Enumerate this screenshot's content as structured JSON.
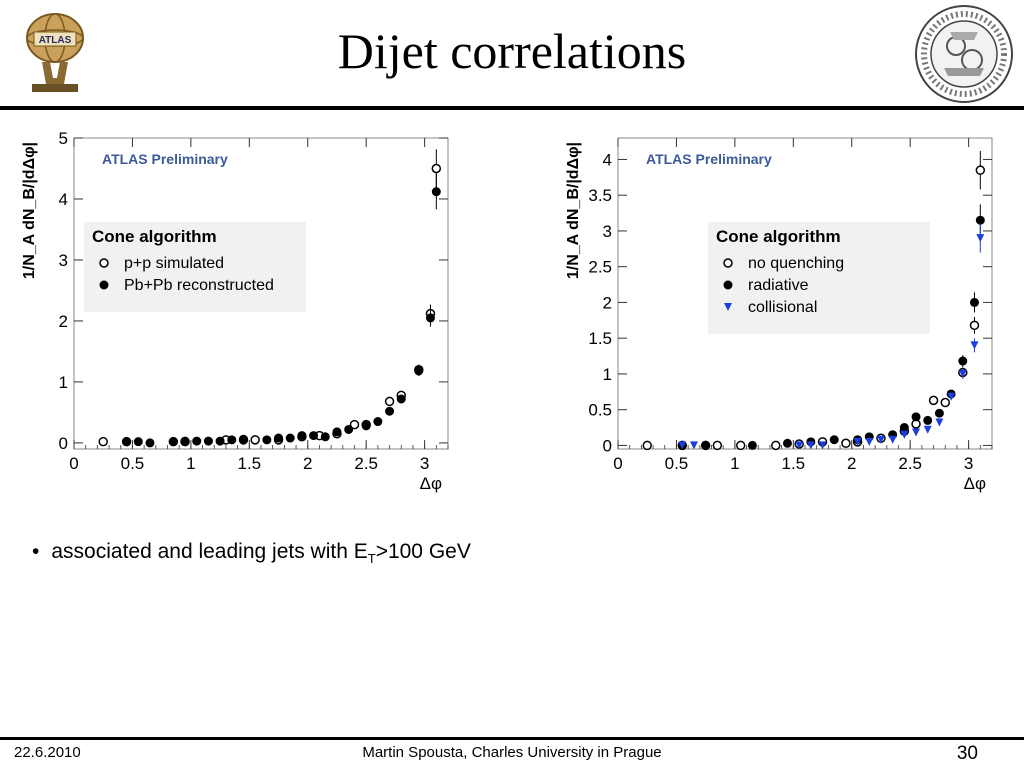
{
  "slide": {
    "title": "Dijet correlations",
    "bullet": {
      "text": "associated and leading jets with E",
      "sub": "T",
      "rest": ">100 GeV"
    },
    "footer": {
      "date": "22.6.2010",
      "author": "Martin Spousta,  Charles University in Prague",
      "page": "30"
    },
    "logo_text": "ATLAS"
  },
  "colors": {
    "text": "#000000",
    "collisional": "#1a3ee0",
    "background": "#ffffff"
  },
  "chart_data": [
    {
      "type": "scatter",
      "watermark": "ATLAS Preliminary",
      "legend_title": "Cone algorithm",
      "legend_position": "upper-left",
      "xlabel": "Δφ",
      "ylabel": "1/N_A dN_B/|dΔφ|",
      "xlim": [
        0,
        3.2
      ],
      "ylim": [
        -0.1,
        5
      ],
      "xticks": [
        "0",
        "0.5",
        "1",
        "1.5",
        "2",
        "2.5",
        "3"
      ],
      "yticks": [
        "0",
        "1",
        "2",
        "3",
        "4",
        "5"
      ],
      "series": [
        {
          "name": "p+p simulated",
          "marker": "open-circle",
          "color": "#000000",
          "x": [
            0.25,
            0.45,
            0.85,
            0.95,
            1.3,
            1.45,
            1.55,
            1.75,
            1.95,
            2.1,
            2.25,
            2.4,
            2.5,
            2.7,
            2.8,
            2.95,
            3.05,
            3.1
          ],
          "y": [
            0.02,
            0.02,
            0.02,
            0.02,
            0.05,
            0.05,
            0.05,
            0.05,
            0.1,
            0.12,
            0.15,
            0.3,
            0.3,
            0.68,
            0.78,
            1.2,
            2.12,
            4.5
          ]
        },
        {
          "name": "Pb+Pb reconstructed",
          "marker": "filled-circle",
          "color": "#000000",
          "x": [
            0.45,
            0.55,
            0.65,
            0.85,
            0.95,
            1.05,
            1.15,
            1.25,
            1.35,
            1.45,
            1.65,
            1.75,
            1.85,
            1.95,
            2.05,
            2.15,
            2.25,
            2.35,
            2.5,
            2.6,
            2.7,
            2.8,
            2.95,
            3.05,
            3.1
          ],
          "y": [
            0.02,
            0.02,
            0.0,
            0.02,
            0.03,
            0.03,
            0.03,
            0.03,
            0.05,
            0.06,
            0.05,
            0.08,
            0.08,
            0.12,
            0.12,
            0.1,
            0.18,
            0.22,
            0.28,
            0.35,
            0.52,
            0.72,
            1.18,
            2.05,
            4.12
          ]
        }
      ]
    },
    {
      "type": "scatter",
      "watermark": "ATLAS Preliminary",
      "legend_title": "Cone algorithm",
      "legend_position": "upper-right",
      "xlabel": "Δφ",
      "ylabel": "1/N_A dN_B/|dΔφ|",
      "xlim": [
        0,
        3.2
      ],
      "ylim": [
        -0.05,
        4.3
      ],
      "xticks": [
        "0",
        "0.5",
        "1",
        "1.5",
        "2",
        "2.5",
        "3"
      ],
      "yticks": [
        "0",
        "0.5",
        "1",
        "1.5",
        "2",
        "2.5",
        "3",
        "3.5",
        "4"
      ],
      "series": [
        {
          "name": "no quenching",
          "marker": "open-circle",
          "color": "#000000",
          "x": [
            0.25,
            0.55,
            0.75,
            0.85,
            1.05,
            1.35,
            1.55,
            1.75,
            1.95,
            2.05,
            2.25,
            2.45,
            2.55,
            2.7,
            2.8,
            2.95,
            3.05,
            3.1
          ],
          "y": [
            0.0,
            0.0,
            0.0,
            0.0,
            0.0,
            0.0,
            0.02,
            0.05,
            0.03,
            0.05,
            0.1,
            0.2,
            0.3,
            0.63,
            0.6,
            1.02,
            1.68,
            3.85
          ]
        },
        {
          "name": "radiative",
          "marker": "filled-circle",
          "color": "#000000",
          "x": [
            0.55,
            0.75,
            1.15,
            1.45,
            1.65,
            1.85,
            2.05,
            2.15,
            2.35,
            2.45,
            2.55,
            2.65,
            2.75,
            2.85,
            2.95,
            3.05,
            3.1
          ],
          "y": [
            0.0,
            0.0,
            0.0,
            0.03,
            0.05,
            0.08,
            0.08,
            0.12,
            0.15,
            0.25,
            0.4,
            0.35,
            0.45,
            0.72,
            1.18,
            2.0,
            3.15
          ]
        },
        {
          "name": "collisional",
          "marker": "down-triangle",
          "color": "#1a3ee0",
          "x": [
            0.55,
            0.65,
            1.55,
            1.65,
            1.75,
            2.05,
            2.15,
            2.25,
            2.35,
            2.45,
            2.55,
            2.65,
            2.75,
            2.85,
            2.95,
            3.05,
            3.1
          ],
          "y": [
            0.0,
            0.0,
            0.0,
            0.0,
            0.0,
            0.05,
            0.05,
            0.08,
            0.08,
            0.15,
            0.18,
            0.22,
            0.32,
            0.68,
            1.0,
            1.4,
            2.9
          ]
        }
      ]
    }
  ]
}
